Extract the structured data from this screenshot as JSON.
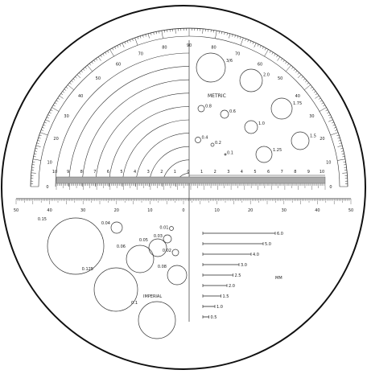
{
  "protractor": {
    "angle_labels": [
      "0",
      "10",
      "20",
      "30",
      "40",
      "50",
      "60",
      "70",
      "80",
      "90",
      "80",
      "70",
      "60",
      "50",
      "40",
      "30",
      "20",
      "10",
      "0"
    ],
    "arc_labels": [
      "10",
      "9",
      "8",
      "7",
      "6",
      "5",
      "4",
      "3",
      "2",
      "1",
      "0",
      "1",
      "2",
      "3",
      "4",
      "5",
      "6",
      "7",
      "8",
      "9",
      "10"
    ]
  },
  "metric": {
    "title": "METRIC",
    "circles": [
      {
        "label": "3/6",
        "d": 36
      },
      {
        "label": "2.0",
        "d": 28
      },
      {
        "label": "1.75",
        "d": 26
      },
      {
        "label": "1.5",
        "d": 22
      },
      {
        "label": "1.25",
        "d": 20
      },
      {
        "label": "1.0",
        "d": 16
      },
      {
        "label": "0.6",
        "d": 10
      },
      {
        "label": "0.8",
        "d": 8
      },
      {
        "label": "0.4",
        "d": 7
      },
      {
        "label": "0.2",
        "d": 4
      },
      {
        "label": "0.1",
        "d": 2
      }
    ]
  },
  "ruler": {
    "top_labels": [
      "10",
      "9",
      "8",
      "7",
      "6",
      "5",
      "4",
      "3",
      "2",
      "1",
      "0",
      "1",
      "2",
      "3",
      "4",
      "5",
      "6",
      "7",
      "8",
      "9",
      "10"
    ],
    "bottom_labels": [
      "50",
      "40",
      "30",
      "20",
      "10",
      "0",
      "10",
      "20",
      "30",
      "40",
      "50"
    ]
  },
  "imperial": {
    "title": "IMPERIAL",
    "circles": [
      {
        "label": "0.15",
        "d": 70
      },
      {
        "label": "0.125",
        "d": 54
      },
      {
        "label": "0.1",
        "d": 46
      },
      {
        "label": "0.08",
        "d": 24
      },
      {
        "label": "0.06",
        "d": 34
      },
      {
        "label": "0.05",
        "d": 22
      },
      {
        "label": "0.04",
        "d": 14
      },
      {
        "label": "0.03",
        "d": 10
      },
      {
        "label": "0.02",
        "d": 8
      },
      {
        "label": "0.01",
        "d": 5
      }
    ]
  },
  "mm_scale": {
    "unit": "MM",
    "bars": [
      {
        "label": "6.0",
        "mm": 6.0
      },
      {
        "label": "5.0",
        "mm": 5.0
      },
      {
        "label": "4.0",
        "mm": 4.0
      },
      {
        "label": "3.0",
        "mm": 3.0
      },
      {
        "label": "2.5",
        "mm": 2.5
      },
      {
        "label": "2.0",
        "mm": 2.0
      },
      {
        "label": "1.5",
        "mm": 1.5
      },
      {
        "label": "1.0",
        "mm": 1.0
      },
      {
        "label": "0.5",
        "mm": 0.5
      }
    ]
  }
}
